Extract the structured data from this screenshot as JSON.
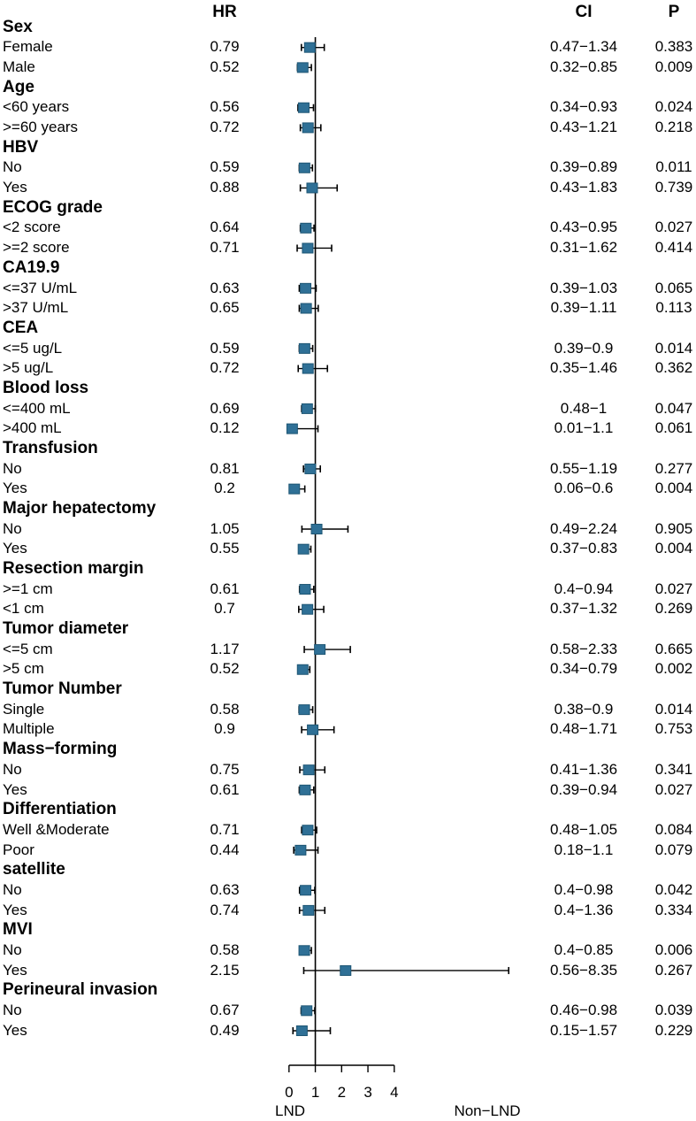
{
  "chart_data": {
    "type": "forest",
    "columns": {
      "hr": "HR",
      "ci": "CI",
      "p": "P"
    },
    "x_axis": {
      "tick_labels": [
        "0",
        "1",
        "2",
        "3",
        "4"
      ],
      "reference_value": 1,
      "left_label": "LND",
      "right_label": "Non−LND"
    },
    "marker_fill": "#2F7096",
    "marker_border": "#1E5674",
    "line_color": "#000000",
    "groups": [
      {
        "name": "Sex",
        "rows": [
          {
            "label": "Female",
            "hr": "0.79",
            "lo": 0.47,
            "hi": 1.34,
            "ci": "0.47−1.34",
            "p": "0.383"
          },
          {
            "label": "Male",
            "hr": "0.52",
            "lo": 0.32,
            "hi": 0.85,
            "ci": "0.32−0.85",
            "p": "0.009"
          }
        ]
      },
      {
        "name": "Age",
        "rows": [
          {
            "label": "<60 years",
            "hr": "0.56",
            "lo": 0.34,
            "hi": 0.93,
            "ci": "0.34−0.93",
            "p": "0.024"
          },
          {
            "label": ">=60 years",
            "hr": "0.72",
            "lo": 0.43,
            "hi": 1.21,
            "ci": "0.43−1.21",
            "p": "0.218"
          }
        ]
      },
      {
        "name": "HBV",
        "rows": [
          {
            "label": "No",
            "hr": "0.59",
            "lo": 0.39,
            "hi": 0.89,
            "ci": "0.39−0.89",
            "p": "0.011"
          },
          {
            "label": "Yes",
            "hr": "0.88",
            "lo": 0.43,
            "hi": 1.83,
            "ci": "0.43−1.83",
            "p": "0.739"
          }
        ]
      },
      {
        "name": "ECOG grade",
        "rows": [
          {
            "label": "<2 score",
            "hr": "0.64",
            "lo": 0.43,
            "hi": 0.95,
            "ci": "0.43−0.95",
            "p": "0.027"
          },
          {
            "label": ">=2 score",
            "hr": "0.71",
            "lo": 0.31,
            "hi": 1.62,
            "ci": "0.31−1.62",
            "p": "0.414"
          }
        ]
      },
      {
        "name": "CA19.9",
        "rows": [
          {
            "label": "<=37 U/mL",
            "hr": "0.63",
            "lo": 0.39,
            "hi": 1.03,
            "ci": "0.39−1.03",
            "p": "0.065"
          },
          {
            "label": ">37 U/mL",
            "hr": "0.65",
            "lo": 0.39,
            "hi": 1.11,
            "ci": "0.39−1.11",
            "p": "0.113"
          }
        ]
      },
      {
        "name": "CEA",
        "rows": [
          {
            "label": "<=5 ug/L",
            "hr": "0.59",
            "lo": 0.39,
            "hi": 0.9,
            "ci": "0.39−0.9",
            "p": "0.014"
          },
          {
            "label": ">5 ug/L",
            "hr": "0.72",
            "lo": 0.35,
            "hi": 1.46,
            "ci": "0.35−1.46",
            "p": "0.362"
          }
        ]
      },
      {
        "name": "Blood loss",
        "rows": [
          {
            "label": "<=400 mL",
            "hr": "0.69",
            "lo": 0.48,
            "hi": 1.0,
            "ci": "0.48−1",
            "p": "0.047"
          },
          {
            "label": ">400 mL",
            "hr": "0.12",
            "lo": 0.01,
            "hi": 1.1,
            "ci": "0.01−1.1",
            "p": "0.061"
          }
        ]
      },
      {
        "name": "Transfusion",
        "rows": [
          {
            "label": "No",
            "hr": "0.81",
            "lo": 0.55,
            "hi": 1.19,
            "ci": "0.55−1.19",
            "p": "0.277"
          },
          {
            "label": "Yes",
            "hr": "0.2",
            "lo": 0.06,
            "hi": 0.6,
            "ci": "0.06−0.6",
            "p": "0.004"
          }
        ]
      },
      {
        "name": "Major hepatectomy",
        "rows": [
          {
            "label": "No",
            "hr": "1.05",
            "lo": 0.49,
            "hi": 2.24,
            "ci": "0.49−2.24",
            "p": "0.905"
          },
          {
            "label": "Yes",
            "hr": "0.55",
            "lo": 0.37,
            "hi": 0.83,
            "ci": "0.37−0.83",
            "p": "0.004"
          }
        ]
      },
      {
        "name": "Resection margin",
        "rows": [
          {
            "label": ">=1 cm",
            "hr": "0.61",
            "lo": 0.4,
            "hi": 0.94,
            "ci": "0.4−0.94",
            "p": "0.027"
          },
          {
            "label": "<1 cm",
            "hr": "0.7",
            "lo": 0.37,
            "hi": 1.32,
            "ci": "0.37−1.32",
            "p": "0.269"
          }
        ]
      },
      {
        "name": "Tumor diameter",
        "rows": [
          {
            "label": "<=5 cm",
            "hr": "1.17",
            "lo": 0.58,
            "hi": 2.33,
            "ci": "0.58−2.33",
            "p": "0.665"
          },
          {
            "label": ">5 cm",
            "hr": "0.52",
            "lo": 0.34,
            "hi": 0.79,
            "ci": "0.34−0.79",
            "p": "0.002"
          }
        ]
      },
      {
        "name": "Tumor Number",
        "rows": [
          {
            "label": "Single",
            "hr": "0.58",
            "lo": 0.38,
            "hi": 0.9,
            "ci": "0.38−0.9",
            "p": "0.014"
          },
          {
            "label": "Multiple",
            "hr": "0.9",
            "lo": 0.48,
            "hi": 1.71,
            "ci": "0.48−1.71",
            "p": "0.753"
          }
        ]
      },
      {
        "name": "Mass−forming",
        "rows": [
          {
            "label": "No",
            "hr": "0.75",
            "lo": 0.41,
            "hi": 1.36,
            "ci": "0.41−1.36",
            "p": "0.341"
          },
          {
            "label": "Yes",
            "hr": "0.61",
            "lo": 0.39,
            "hi": 0.94,
            "ci": "0.39−0.94",
            "p": "0.027"
          }
        ]
      },
      {
        "name": "Differentiation",
        "rows": [
          {
            "label": "Well &Moderate",
            "hr": "0.71",
            "lo": 0.48,
            "hi": 1.05,
            "ci": "0.48−1.05",
            "p": "0.084"
          },
          {
            "label": "Poor",
            "hr": "0.44",
            "lo": 0.18,
            "hi": 1.1,
            "ci": "0.18−1.1",
            "p": "0.079"
          }
        ]
      },
      {
        "name": "satellite",
        "rows": [
          {
            "label": "No",
            "hr": "0.63",
            "lo": 0.4,
            "hi": 0.98,
            "ci": "0.4−0.98",
            "p": "0.042"
          },
          {
            "label": "Yes",
            "hr": "0.74",
            "lo": 0.4,
            "hi": 1.36,
            "ci": "0.4−1.36",
            "p": "0.334"
          }
        ]
      },
      {
        "name": "MVI",
        "rows": [
          {
            "label": "No",
            "hr": "0.58",
            "lo": 0.4,
            "hi": 0.85,
            "ci": "0.4−0.85",
            "p": "0.006"
          },
          {
            "label": "Yes",
            "hr": "2.15",
            "lo": 0.56,
            "hi": 8.35,
            "ci": "0.56−8.35",
            "p": "0.267"
          }
        ]
      },
      {
        "name": "Perineural invasion",
        "rows": [
          {
            "label": "No",
            "hr": "0.67",
            "lo": 0.46,
            "hi": 0.98,
            "ci": "0.46−0.98",
            "p": "0.039"
          },
          {
            "label": "Yes",
            "hr": "0.49",
            "lo": 0.15,
            "hi": 1.57,
            "ci": "0.15−1.57",
            "p": "0.229"
          }
        ]
      }
    ]
  }
}
